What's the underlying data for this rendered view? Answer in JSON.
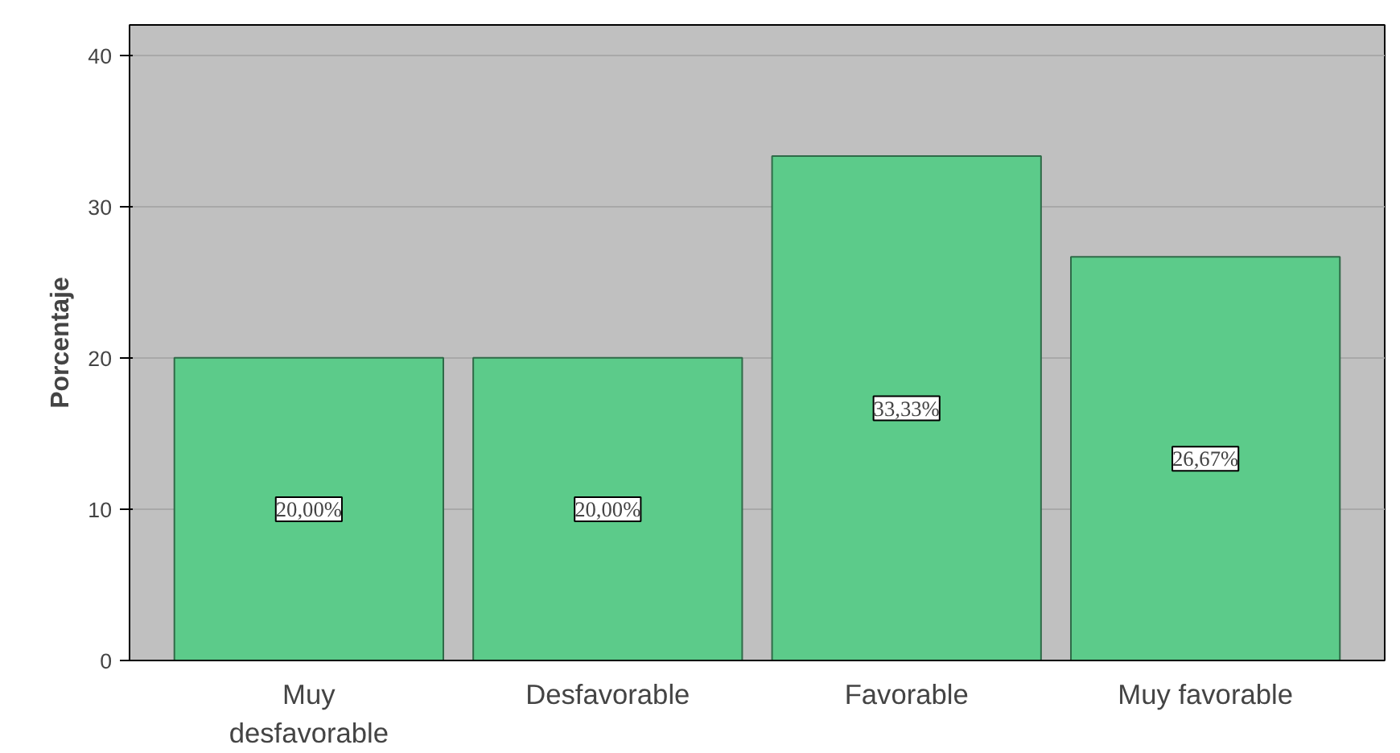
{
  "chart_data": {
    "type": "bar",
    "ylabel": "Porcentaje",
    "categories": [
      "Muy desfavorable",
      "Desfavorable",
      "Favorable",
      "Muy favorable"
    ],
    "values": [
      20,
      20,
      33.33,
      26.67
    ],
    "value_labels": [
      "20,00%",
      "20,00%",
      "33,33%",
      "26,67%"
    ],
    "color": "#5ccb8a",
    "ylim": [
      0,
      42
    ],
    "yticks": [
      0,
      10,
      20,
      30,
      40
    ],
    "grid": "y"
  }
}
